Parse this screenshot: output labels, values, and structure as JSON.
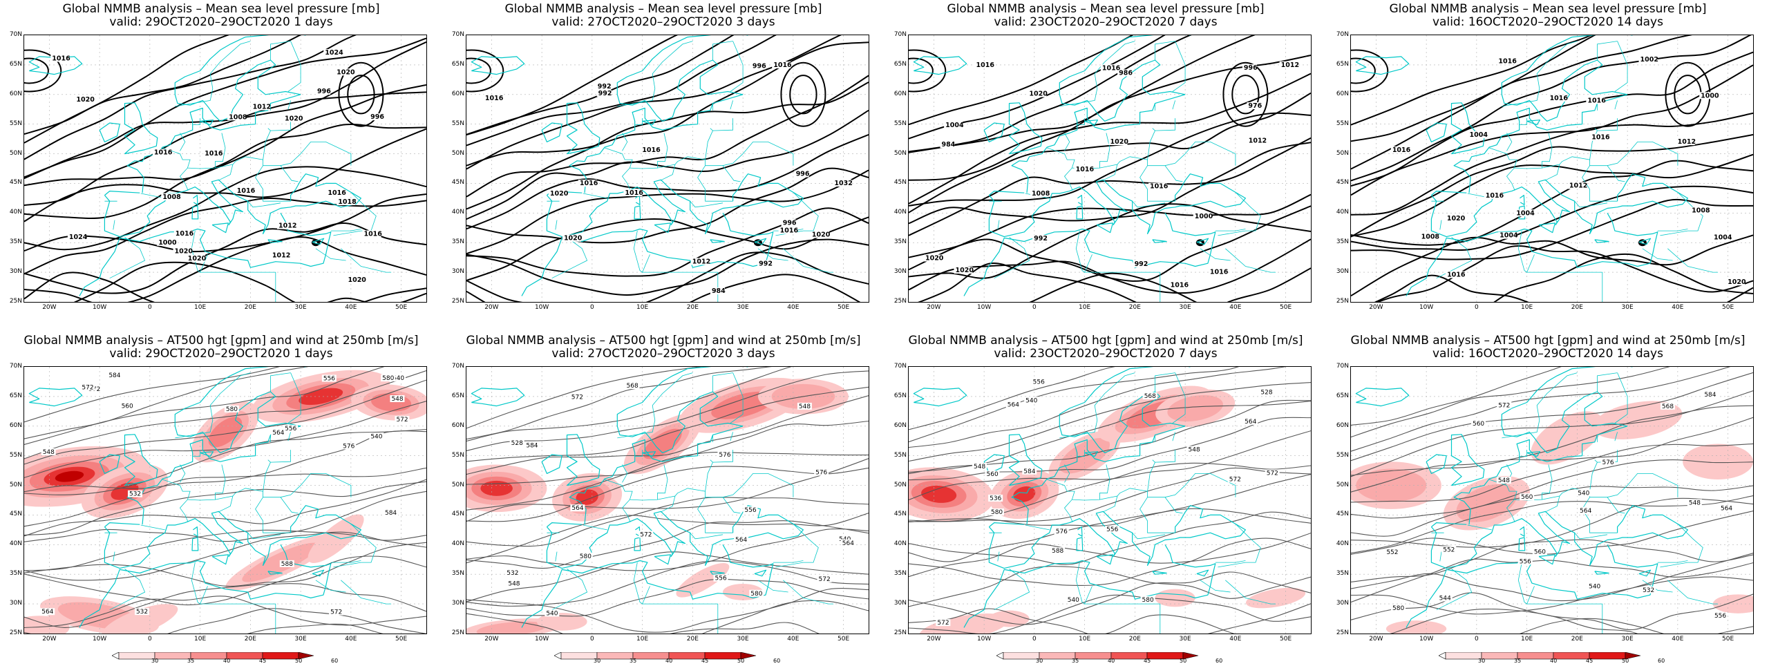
{
  "panels": [
    {
      "title": "Global NMMB analysis – Mean sea level pressure [mb]",
      "subtitle": "valid: 29OCT2020–29OCT2020   1 days",
      "type": "mslp",
      "labels": [
        "996",
        "1020",
        "996",
        "1000",
        "1008",
        "1020",
        "1008",
        "1016",
        "1012",
        "1020",
        "1024",
        "1016",
        "1016",
        "1012",
        "1020",
        "1016",
        "1020",
        "1024",
        "1012",
        "1016",
        "1016",
        "1020",
        "1016",
        "1018"
      ]
    },
    {
      "title": "Global NMMB analysis – Mean sea level pressure [mb]",
      "subtitle": "valid: 27OCT2020–29OCT2020   3 days",
      "type": "mslp",
      "labels": [
        "996",
        "992",
        "996",
        "1020",
        "992",
        "996",
        "984",
        "992",
        "1016",
        "1016",
        "1032",
        "1020",
        "1016",
        "1016",
        "1012",
        "1020",
        "1016",
        "1016"
      ]
    },
    {
      "title": "Global NMMB analysis – Mean sea level pressure [mb]",
      "subtitle": "valid: 23OCT2020–29OCT2020   7 days",
      "type": "mslp",
      "labels": [
        "992",
        "986",
        "976",
        "984",
        "992",
        "996",
        "1000",
        "1004",
        "1008",
        "1012",
        "1016",
        "1016",
        "1020",
        "1012",
        "1016",
        "1016",
        "1016",
        "1020",
        "1020",
        "1016",
        "1020"
      ]
    },
    {
      "title": "Global NMMB analysis – Mean sea level pressure [mb]",
      "subtitle": "valid: 16OCT2020–29OCT2020   14 days",
      "type": "mslp",
      "labels": [
        "1004",
        "1002",
        "1004",
        "1000",
        "1004",
        "1008",
        "1012",
        "1004",
        "1008",
        "1012",
        "1016",
        "1016",
        "1016",
        "1016",
        "1020",
        "1016",
        "1016",
        "1020",
        "1016"
      ]
    },
    {
      "title": "Global NMMB analysis – AT500 hgt [gpm] and wind at 250mb [m/s]",
      "subtitle": "valid: 29OCT2020–29OCT2020   1 days",
      "type": "z500",
      "labels": [
        "532",
        "540",
        "548",
        "556",
        "532",
        "540",
        "548",
        "556",
        "564",
        "572",
        "580",
        "588",
        "564",
        "572",
        "584",
        "572",
        "576",
        "580",
        "584",
        "572",
        "560"
      ]
    },
    {
      "title": "Global NMMB analysis – AT500 hgt [gpm] and wind at 250mb [m/s]",
      "subtitle": "valid: 27OCT2020–29OCT2020   3 days",
      "type": "z500",
      "labels": [
        "528",
        "540",
        "548",
        "556",
        "564",
        "572",
        "532",
        "540",
        "548",
        "556",
        "564",
        "572",
        "576",
        "580",
        "568",
        "564",
        "572",
        "576",
        "580",
        "584"
      ]
    },
    {
      "title": "Global NMMB analysis – AT500 hgt [gpm] and wind at 250mb [m/s]",
      "subtitle": "valid: 23OCT2020–29OCT2020   7 days",
      "type": "z500",
      "labels": [
        "528",
        "540",
        "548",
        "556",
        "564",
        "572",
        "536",
        "540",
        "548",
        "556",
        "564",
        "572",
        "580",
        "588",
        "568",
        "560",
        "572",
        "576",
        "580",
        "584"
      ]
    },
    {
      "title": "Global NMMB analysis – AT500 hgt [gpm] and wind at 250mb [m/s]",
      "subtitle": "valid: 16OCT2020–29OCT2020   14 days",
      "type": "z500",
      "labels": [
        "532",
        "540",
        "544",
        "548",
        "552",
        "556",
        "560",
        "564",
        "540",
        "548",
        "552",
        "556",
        "560",
        "564",
        "568",
        "572",
        "576",
        "580",
        "584",
        "560"
      ]
    }
  ],
  "lat_labels": [
    "70N",
    "65N",
    "60N",
    "55N",
    "50N",
    "45N",
    "40N",
    "35N",
    "30N",
    "25N"
  ],
  "lon_labels": [
    "20W",
    "10W",
    "0",
    "10E",
    "20E",
    "30E",
    "40E",
    "50E"
  ],
  "colorbar": {
    "ticks": [
      "30",
      "35",
      "40",
      "45",
      "50",
      "60"
    ],
    "colors": [
      "#ffffff",
      "#fde0e0",
      "#fbb8b8",
      "#f78f8f",
      "#f05555",
      "#e01818",
      "#a00000"
    ]
  },
  "colors": {
    "coast": "#00c8c8",
    "contour": "#000000",
    "z500_contour": "#555555",
    "grid": "#b0b0b0",
    "jet_light": "#fcc8c8",
    "jet_mid": "#f48080",
    "jet_dark": "#c00000"
  }
}
